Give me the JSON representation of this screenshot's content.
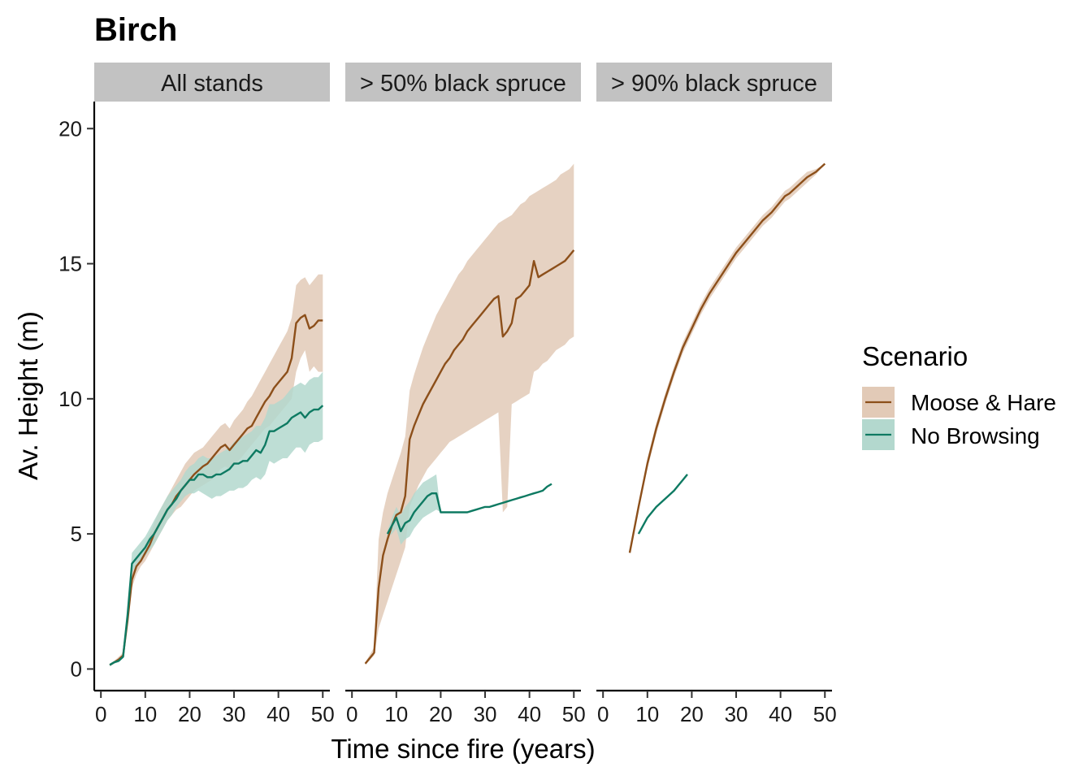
{
  "chart_data": {
    "type": "line",
    "title": "Birch",
    "xlabel": "Time since fire (years)",
    "ylabel": "Av. Height (m)",
    "xlim": [
      -1.5,
      51.6
    ],
    "ylim": [
      -0.8,
      21
    ],
    "x_ticks": [
      0,
      10,
      20,
      30,
      40,
      50
    ],
    "y_ticks": [
      0,
      5,
      10,
      15,
      20
    ],
    "grid": false,
    "legend": {
      "title": "Scenario",
      "position": "right",
      "entries": [
        "Moose & Hare",
        "No Browsing"
      ]
    },
    "colors": {
      "Moose & Hare": {
        "line": "#8C4F1A",
        "fill": "#E2CAB7"
      },
      "No Browsing": {
        "line": "#0E7A62",
        "fill": "#B3D8CE"
      },
      "strip": "#C2C2C2"
    },
    "panels": [
      {
        "label": "All stands",
        "series": [
          {
            "name": "Moose & Hare",
            "x": [
              2,
              3,
              4,
              5,
              6,
              7,
              8,
              9,
              10,
              11,
              12,
              13,
              14,
              15,
              16,
              17,
              18,
              19,
              20,
              21,
              22,
              23,
              24,
              25,
              26,
              27,
              28,
              29,
              30,
              31,
              32,
              33,
              34,
              35,
              36,
              37,
              38,
              39,
              40,
              41,
              42,
              43,
              44,
              45,
              46,
              47,
              48,
              49,
              50
            ],
            "y": [
              0.15,
              0.25,
              0.35,
              0.5,
              1.8,
              3.3,
              3.8,
              4.0,
              4.3,
              4.6,
              5.0,
              5.3,
              5.6,
              5.9,
              6.1,
              6.4,
              6.6,
              6.8,
              7.0,
              7.2,
              7.35,
              7.5,
              7.6,
              7.8,
              8.0,
              8.2,
              8.3,
              8.1,
              8.3,
              8.5,
              8.7,
              8.9,
              9.0,
              9.3,
              9.6,
              9.9,
              10.1,
              10.4,
              10.6,
              10.8,
              11.0,
              11.5,
              12.8,
              13.0,
              13.1,
              12.6,
              12.7,
              12.9,
              12.9
            ],
            "lower": [
              0.1,
              0.2,
              0.3,
              0.45,
              1.6,
              3.0,
              3.5,
              3.8,
              4.0,
              4.3,
              4.6,
              4.9,
              5.2,
              5.5,
              5.7,
              5.9,
              6.0,
              6.2,
              6.4,
              6.6,
              6.7,
              6.8,
              6.9,
              7.0,
              7.2,
              7.4,
              7.5,
              7.4,
              7.5,
              7.7,
              7.9,
              8.1,
              8.3,
              8.5,
              8.7,
              8.9,
              9.0,
              9.2,
              9.4,
              9.6,
              9.8,
              10.0,
              11.0,
              11.5,
              11.8,
              11.0,
              11.2,
              11.0,
              11.0
            ],
            "upper": [
              0.2,
              0.3,
              0.45,
              0.6,
              2.0,
              3.6,
              4.1,
              4.3,
              4.6,
              5.0,
              5.4,
              5.8,
              6.1,
              6.4,
              6.7,
              7.0,
              7.3,
              7.6,
              7.8,
              8.0,
              8.1,
              8.2,
              8.4,
              8.6,
              8.8,
              9.0,
              9.1,
              8.9,
              9.2,
              9.4,
              9.6,
              9.9,
              10.1,
              10.4,
              10.7,
              11.0,
              11.3,
              11.6,
              11.9,
              12.2,
              12.5,
              13.0,
              14.2,
              14.4,
              14.5,
              14.2,
              14.4,
              14.6,
              14.6
            ]
          },
          {
            "name": "No Browsing",
            "x": [
              2,
              3,
              4,
              5,
              6,
              7,
              8,
              9,
              10,
              11,
              12,
              13,
              14,
              15,
              16,
              17,
              18,
              19,
              20,
              21,
              22,
              23,
              24,
              25,
              26,
              27,
              28,
              29,
              30,
              31,
              32,
              33,
              34,
              35,
              36,
              37,
              38,
              39,
              40,
              41,
              42,
              43,
              44,
              45,
              46,
              47,
              48,
              49,
              50
            ],
            "y": [
              0.15,
              0.25,
              0.3,
              0.45,
              2.0,
              3.9,
              4.1,
              4.3,
              4.5,
              4.8,
              5.0,
              5.3,
              5.6,
              5.9,
              6.1,
              6.3,
              6.6,
              6.8,
              7.0,
              7.0,
              7.2,
              7.2,
              7.1,
              7.1,
              7.2,
              7.2,
              7.3,
              7.4,
              7.6,
              7.6,
              7.7,
              7.7,
              7.9,
              8.1,
              8.0,
              8.3,
              8.8,
              8.8,
              8.9,
              9.0,
              9.1,
              9.3,
              9.4,
              9.5,
              9.3,
              9.5,
              9.6,
              9.6,
              9.75
            ],
            "lower": [
              0.1,
              0.2,
              0.25,
              0.4,
              1.8,
              3.6,
              3.8,
              4.0,
              4.2,
              4.4,
              4.6,
              4.9,
              5.2,
              5.5,
              5.7,
              6.0,
              6.2,
              6.4,
              6.5,
              6.5,
              6.6,
              6.5,
              6.4,
              6.3,
              6.4,
              6.4,
              6.5,
              6.6,
              6.6,
              6.7,
              6.7,
              6.8,
              7.0,
              7.1,
              7.0,
              7.2,
              7.7,
              7.6,
              7.7,
              7.8,
              7.8,
              8.0,
              8.2,
              8.2,
              8.0,
              8.3,
              8.4,
              8.4,
              8.5
            ],
            "upper": [
              0.2,
              0.3,
              0.35,
              0.5,
              2.2,
              4.3,
              4.5,
              4.7,
              4.9,
              5.2,
              5.5,
              5.8,
              6.1,
              6.4,
              6.6,
              6.8,
              7.0,
              7.3,
              7.5,
              7.6,
              7.8,
              7.9,
              7.8,
              7.8,
              7.9,
              8.0,
              8.1,
              8.2,
              8.4,
              8.5,
              8.6,
              8.7,
              8.8,
              9.0,
              9.0,
              9.3,
              9.8,
              9.8,
              9.9,
              10.0,
              10.2,
              10.4,
              10.5,
              10.6,
              10.5,
              10.7,
              10.8,
              10.8,
              11.0
            ]
          }
        ]
      },
      {
        "label": "> 50% black spruce",
        "series": [
          {
            "name": "Moose & Hare",
            "x": [
              3,
              5,
              6,
              7,
              8,
              9,
              10,
              11,
              12,
              13,
              14,
              15,
              16,
              17,
              18,
              19,
              20,
              21,
              22,
              23,
              24,
              25,
              26,
              27,
              28,
              29,
              30,
              31,
              32,
              33,
              34,
              35,
              36,
              37,
              38,
              39,
              40,
              41,
              42,
              43,
              44,
              45,
              46,
              47,
              48,
              49,
              50
            ],
            "y": [
              0.2,
              0.6,
              3.0,
              4.2,
              4.8,
              5.3,
              5.7,
              5.8,
              6.4,
              8.5,
              9.0,
              9.4,
              9.8,
              10.1,
              10.4,
              10.7,
              11.0,
              11.3,
              11.5,
              11.8,
              12.0,
              12.2,
              12.5,
              12.7,
              12.9,
              13.1,
              13.3,
              13.5,
              13.7,
              13.8,
              12.3,
              12.5,
              12.8,
              13.7,
              13.8,
              14.0,
              14.2,
              15.1,
              14.5,
              14.6,
              14.7,
              14.8,
              14.9,
              15.0,
              15.1,
              15.3,
              15.5
            ],
            "lower": [
              0.15,
              0.5,
              1.5,
              2.0,
              2.5,
              3.0,
              3.5,
              4.0,
              4.5,
              6.0,
              6.4,
              6.8,
              7.1,
              7.4,
              7.6,
              7.8,
              8.0,
              8.2,
              8.4,
              8.5,
              8.6,
              8.7,
              8.8,
              8.9,
              9.0,
              9.1,
              9.2,
              9.3,
              9.4,
              9.5,
              5.8,
              6.0,
              9.8,
              9.9,
              10.0,
              10.1,
              10.2,
              11.0,
              11.1,
              11.3,
              11.4,
              11.6,
              11.8,
              11.9,
              12.0,
              12.2,
              12.3
            ],
            "upper": [
              0.25,
              0.8,
              4.8,
              5.8,
              6.5,
              7.0,
              7.5,
              8.0,
              8.6,
              10.3,
              10.9,
              11.4,
              11.9,
              12.3,
              12.7,
              13.1,
              13.4,
              13.7,
              14.0,
              14.3,
              14.6,
              14.8,
              15.1,
              15.3,
              15.5,
              15.7,
              15.9,
              16.1,
              16.3,
              16.5,
              16.6,
              16.7,
              16.8,
              17.0,
              17.2,
              17.3,
              17.5,
              17.6,
              17.7,
              17.8,
              17.9,
              18.0,
              18.1,
              18.3,
              18.4,
              18.5,
              18.7
            ]
          },
          {
            "name": "No Browsing",
            "x": [
              8,
              9,
              10,
              11,
              12,
              13,
              14,
              15,
              16,
              17,
              18,
              19,
              20,
              21,
              22,
              23,
              24,
              25,
              26,
              27,
              28,
              29,
              30,
              31,
              32,
              33,
              34,
              35,
              36,
              37,
              38,
              39,
              40,
              41,
              42,
              43,
              44,
              45
            ],
            "y": [
              5.0,
              5.3,
              5.6,
              5.1,
              5.4,
              5.5,
              5.8,
              6.0,
              6.2,
              6.4,
              6.5,
              6.5,
              5.8,
              5.8,
              5.8,
              5.8,
              5.8,
              5.8,
              5.8,
              5.85,
              5.9,
              5.95,
              6.0,
              6.0,
              6.05,
              6.1,
              6.15,
              6.2,
              6.25,
              6.3,
              6.35,
              6.4,
              6.45,
              6.5,
              6.55,
              6.6,
              6.75,
              6.85
            ],
            "lower": [
              4.9,
              5.0,
              5.2,
              4.6,
              4.8,
              4.9,
              5.2,
              5.4,
              5.6,
              5.7,
              5.8,
              5.9,
              5.8,
              5.8,
              5.8,
              5.8,
              5.8,
              5.8,
              5.8,
              5.85,
              5.9,
              5.95,
              6.0,
              6.0,
              6.05,
              6.1,
              6.15,
              6.2,
              6.25,
              6.3,
              6.35,
              6.4,
              6.45,
              6.5,
              6.55,
              6.6,
              6.75,
              6.85
            ],
            "upper": [
              5.1,
              5.6,
              6.0,
              5.7,
              6.0,
              6.2,
              6.5,
              6.7,
              6.9,
              7.0,
              7.1,
              7.2,
              5.8,
              5.8,
              5.8,
              5.8,
              5.8,
              5.8,
              5.8,
              5.85,
              5.9,
              5.95,
              6.0,
              6.0,
              6.05,
              6.1,
              6.15,
              6.2,
              6.25,
              6.3,
              6.35,
              6.4,
              6.45,
              6.5,
              6.55,
              6.6,
              6.75,
              6.85
            ]
          }
        ]
      },
      {
        "label": "> 90% black spruce",
        "series": [
          {
            "name": "Moose & Hare",
            "x": [
              6,
              8,
              10,
              12,
              14,
              16,
              18,
              20,
              22,
              24,
              26,
              28,
              30,
              32,
              34,
              36,
              38,
              40,
              41,
              42,
              44,
              46,
              48,
              50
            ],
            "y": [
              4.3,
              6.0,
              7.6,
              8.9,
              10.0,
              11.0,
              11.9,
              12.6,
              13.3,
              13.9,
              14.4,
              14.9,
              15.4,
              15.8,
              16.2,
              16.6,
              16.9,
              17.3,
              17.5,
              17.6,
              17.9,
              18.2,
              18.4,
              18.7
            ],
            "lower": [
              4.3,
              5.9,
              7.4,
              8.7,
              9.8,
              10.8,
              11.7,
              12.4,
              13.1,
              13.7,
              14.2,
              14.7,
              15.2,
              15.6,
              16.0,
              16.4,
              16.7,
              17.1,
              17.3,
              17.4,
              17.7,
              18.0,
              18.3,
              18.7
            ],
            "upper": [
              4.3,
              6.1,
              7.8,
              9.1,
              10.2,
              11.2,
              12.1,
              12.8,
              13.5,
              14.1,
              14.6,
              15.1,
              15.6,
              16.0,
              16.4,
              16.8,
              17.1,
              17.5,
              17.7,
              17.8,
              18.1,
              18.4,
              18.5,
              18.7
            ]
          },
          {
            "name": "No Browsing",
            "x": [
              8,
              10,
              12,
              14,
              16,
              17,
              18,
              19
            ],
            "y": [
              5.0,
              5.6,
              6.0,
              6.3,
              6.6,
              6.8,
              7.0,
              7.2
            ],
            "lower": [
              5.0,
              5.6,
              6.0,
              6.3,
              6.6,
              6.8,
              7.0,
              7.2
            ],
            "upper": [
              5.0,
              5.6,
              6.0,
              6.3,
              6.6,
              6.8,
              7.0,
              7.2
            ]
          }
        ]
      }
    ]
  }
}
